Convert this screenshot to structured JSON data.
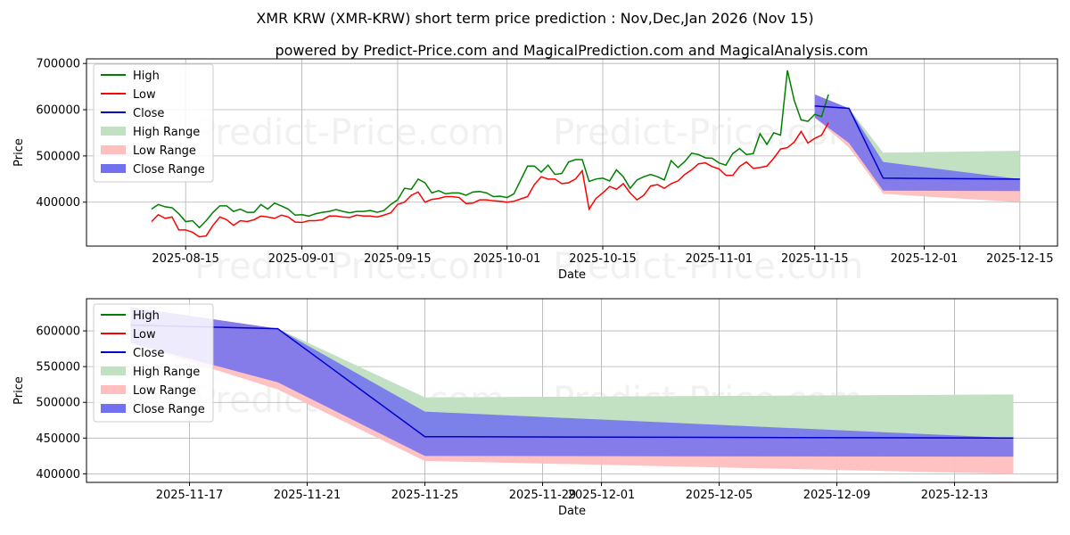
{
  "title": "XMR KRW (XMR-KRW) short term price prediction : Nov,Dec,Jan 2026 (Nov 15)",
  "subtitle": "powered by Predict-Price.com and MagicalPrediction.com and MagicalAnalysis.com",
  "watermark": "Predict-Price.com",
  "colors": {
    "high": "#008000",
    "low": "#ff0000",
    "close": "#0000cc",
    "high_range": "#c2e0c2",
    "low_range": "#ffbfbf",
    "close_range": "#7070f0",
    "grid": "#b0b0b0"
  },
  "chart_data": [
    {
      "type": "line",
      "xlabel": "Date",
      "ylabel": "Price",
      "x_ticks": [
        "2025-08-15",
        "2025-09-01",
        "2025-09-15",
        "2025-10-01",
        "2025-10-15",
        "2025-11-01",
        "2025-11-15",
        "2025-12-01",
        "2025-12-15"
      ],
      "y_ticks": [
        "400000",
        "500000",
        "600000",
        "700000"
      ],
      "ylim": [
        305000,
        710000
      ],
      "legend": [
        "High",
        "Low",
        "Close",
        "High Range",
        "Low Range",
        "Close Range"
      ],
      "legend_position": "top-left",
      "grid": true,
      "history": {
        "start_day": -97,
        "step_days": 1,
        "high": [
          385000,
          395000,
          390000,
          388000,
          375000,
          358000,
          360000,
          345000,
          360000,
          378000,
          392000,
          392000,
          380000,
          385000,
          378000,
          378000,
          395000,
          385000,
          398000,
          392000,
          385000,
          372000,
          373000,
          370000,
          375000,
          378000,
          380000,
          384000,
          380000,
          377000,
          380000,
          380000,
          382000,
          378000,
          382000,
          395000,
          405000,
          430000,
          428000,
          450000,
          442000,
          420000,
          425000,
          418000,
          420000,
          420000,
          415000,
          422000,
          423000,
          420000,
          412000,
          413000,
          410000,
          418000,
          448000,
          478000,
          478000,
          465000,
          480000,
          460000,
          462000,
          487000,
          492000,
          492000,
          445000,
          450000,
          452000,
          446000,
          470000,
          455000,
          430000,
          448000,
          455000,
          460000,
          455000,
          448000,
          490000,
          475000,
          488000,
          506000,
          503000,
          496000,
          495000,
          485000,
          480000,
          505000,
          516000,
          503000,
          505000,
          548000,
          525000,
          550000,
          545000,
          685000,
          620000,
          578000,
          575000,
          590000,
          585000,
          633000
        ],
        "low": [
          358000,
          373000,
          365000,
          368000,
          340000,
          340000,
          335000,
          325000,
          327000,
          350000,
          368000,
          362000,
          350000,
          360000,
          358000,
          362000,
          370000,
          368000,
          365000,
          372000,
          368000,
          357000,
          356000,
          360000,
          360000,
          362000,
          370000,
          370000,
          368000,
          367000,
          372000,
          370000,
          370000,
          368000,
          372000,
          377000,
          395000,
          400000,
          415000,
          422000,
          400000,
          406000,
          408000,
          412000,
          412000,
          410000,
          397000,
          398000,
          405000,
          405000,
          403000,
          402000,
          400000,
          402000,
          407000,
          412000,
          438000,
          455000,
          450000,
          450000,
          440000,
          442000,
          450000,
          468000,
          385000,
          408000,
          420000,
          434000,
          428000,
          440000,
          420000,
          405000,
          415000,
          435000,
          438000,
          430000,
          440000,
          446000,
          460000,
          470000,
          483000,
          485000,
          477000,
          472000,
          458000,
          458000,
          477000,
          487000,
          473000,
          475000,
          478000,
          495000,
          515000,
          518000,
          530000,
          553000,
          528000,
          538000,
          545000,
          572000
        ]
      },
      "forecast": {
        "days": [
          0,
          5,
          10,
          30
        ],
        "close": [
          608000,
          603000,
          452000,
          450000
        ],
        "high_range": [
          [
            583000,
            633000
          ],
          [
            587000,
            603000
          ],
          [
            452000,
            507000
          ],
          [
            450000,
            511000
          ]
        ],
        "low_range": [
          [
            583000,
            633000
          ],
          [
            518000,
            603000
          ],
          [
            418000,
            452000
          ],
          [
            400000,
            450000
          ]
        ],
        "close_range": [
          [
            583000,
            633000
          ],
          [
            528000,
            603000
          ],
          [
            425000,
            487000
          ],
          [
            424000,
            450000
          ]
        ]
      }
    },
    {
      "type": "line",
      "xlabel": "Date",
      "ylabel": "Price",
      "x_ticks": [
        "2025-11-17",
        "2025-11-21",
        "2025-11-25",
        "2025-11-29",
        "2025-12-01",
        "2025-12-05",
        "2025-12-09",
        "2025-12-13"
      ],
      "y_ticks": [
        "400000",
        "450000",
        "500000",
        "550000",
        "600000"
      ],
      "ylim": [
        388000,
        645000
      ],
      "legend": [
        "High",
        "Low",
        "Close",
        "High Range",
        "Low Range",
        "Close Range"
      ],
      "legend_position": "top-left",
      "grid": true,
      "forecast": {
        "days": [
          0,
          5,
          10,
          30
        ],
        "close": [
          608000,
          603000,
          452000,
          450000
        ],
        "high_range": [
          [
            583000,
            633000
          ],
          [
            587000,
            603000
          ],
          [
            452000,
            507000
          ],
          [
            450000,
            511000
          ]
        ],
        "low_range": [
          [
            583000,
            633000
          ],
          [
            518000,
            603000
          ],
          [
            418000,
            452000
          ],
          [
            400000,
            450000
          ]
        ],
        "close_range": [
          [
            583000,
            633000
          ],
          [
            528000,
            603000
          ],
          [
            425000,
            487000
          ],
          [
            424000,
            450000
          ]
        ]
      }
    }
  ]
}
